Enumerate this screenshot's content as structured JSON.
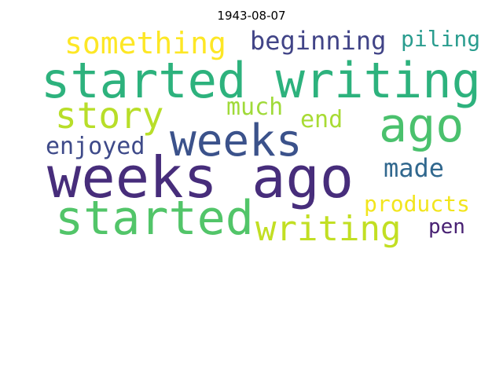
{
  "title": "1943-08-07",
  "words": [
    {
      "text": "weeks ago",
      "color": "#472d7b"
    },
    {
      "text": "started writing",
      "color": "#2db27d"
    },
    {
      "text": "weeks",
      "color": "#3b528b"
    },
    {
      "text": "ago",
      "color": "#4ac16d"
    },
    {
      "text": "started",
      "color": "#52c569"
    },
    {
      "text": "story",
      "color": "#b8de29"
    },
    {
      "text": "writing",
      "color": "#c2df23"
    },
    {
      "text": "something",
      "color": "#fde725"
    },
    {
      "text": "beginning",
      "color": "#414487"
    },
    {
      "text": "piling",
      "color": "#2a9d8f"
    },
    {
      "text": "much",
      "color": "#a0da39"
    },
    {
      "text": "end",
      "color": "#a8db34"
    },
    {
      "text": "enjoyed",
      "color": "#3e4a89"
    },
    {
      "text": "made",
      "color": "#31688e"
    },
    {
      "text": "products",
      "color": "#f2e51d"
    },
    {
      "text": "pen",
      "color": "#482173"
    }
  ]
}
